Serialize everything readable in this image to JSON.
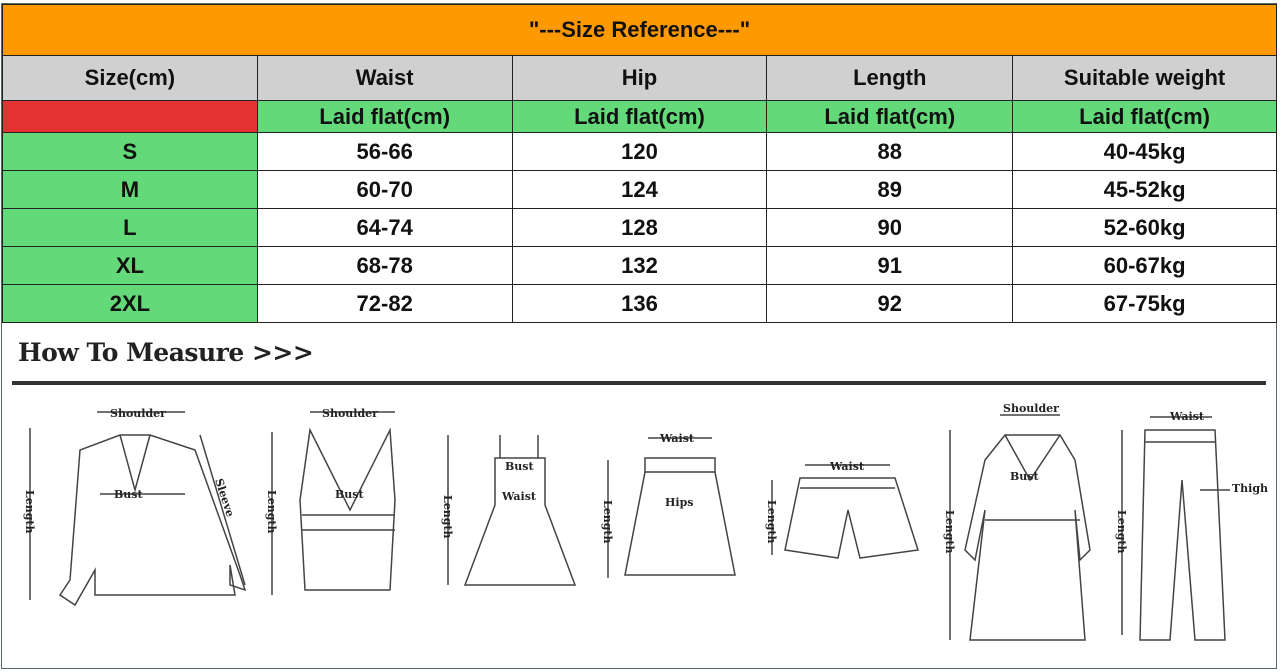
{
  "title": "\"---Size Reference---\"",
  "headers": [
    "Size(cm)",
    "Waist",
    "Hip",
    "Length",
    "Suitable weight"
  ],
  "sub_header": "Laid flat(cm)",
  "rows": [
    [
      "S",
      "56-66",
      "120",
      "88",
      "40-45kg"
    ],
    [
      "M",
      "60-70",
      "124",
      "89",
      "45-52kg"
    ],
    [
      "L",
      "64-74",
      "128",
      "90",
      "52-60kg"
    ],
    [
      "XL",
      "68-78",
      "132",
      "91",
      "60-67kg"
    ],
    [
      "2XL",
      "72-82",
      "136",
      "92",
      "67-75kg"
    ]
  ],
  "colors": {
    "title_bg": "#ff9900",
    "header_bg": "#d0d0d0",
    "green": "#63d97a",
    "red": "#e53232"
  },
  "measure": {
    "heading": "How To Measure >>>",
    "labels": {
      "shoulder": "Shoulder",
      "sleeve": "Sleeve",
      "bust": "Bust",
      "length": "Length",
      "waist": "Waist",
      "hips": "Hips",
      "thigh": "Thigh"
    }
  }
}
